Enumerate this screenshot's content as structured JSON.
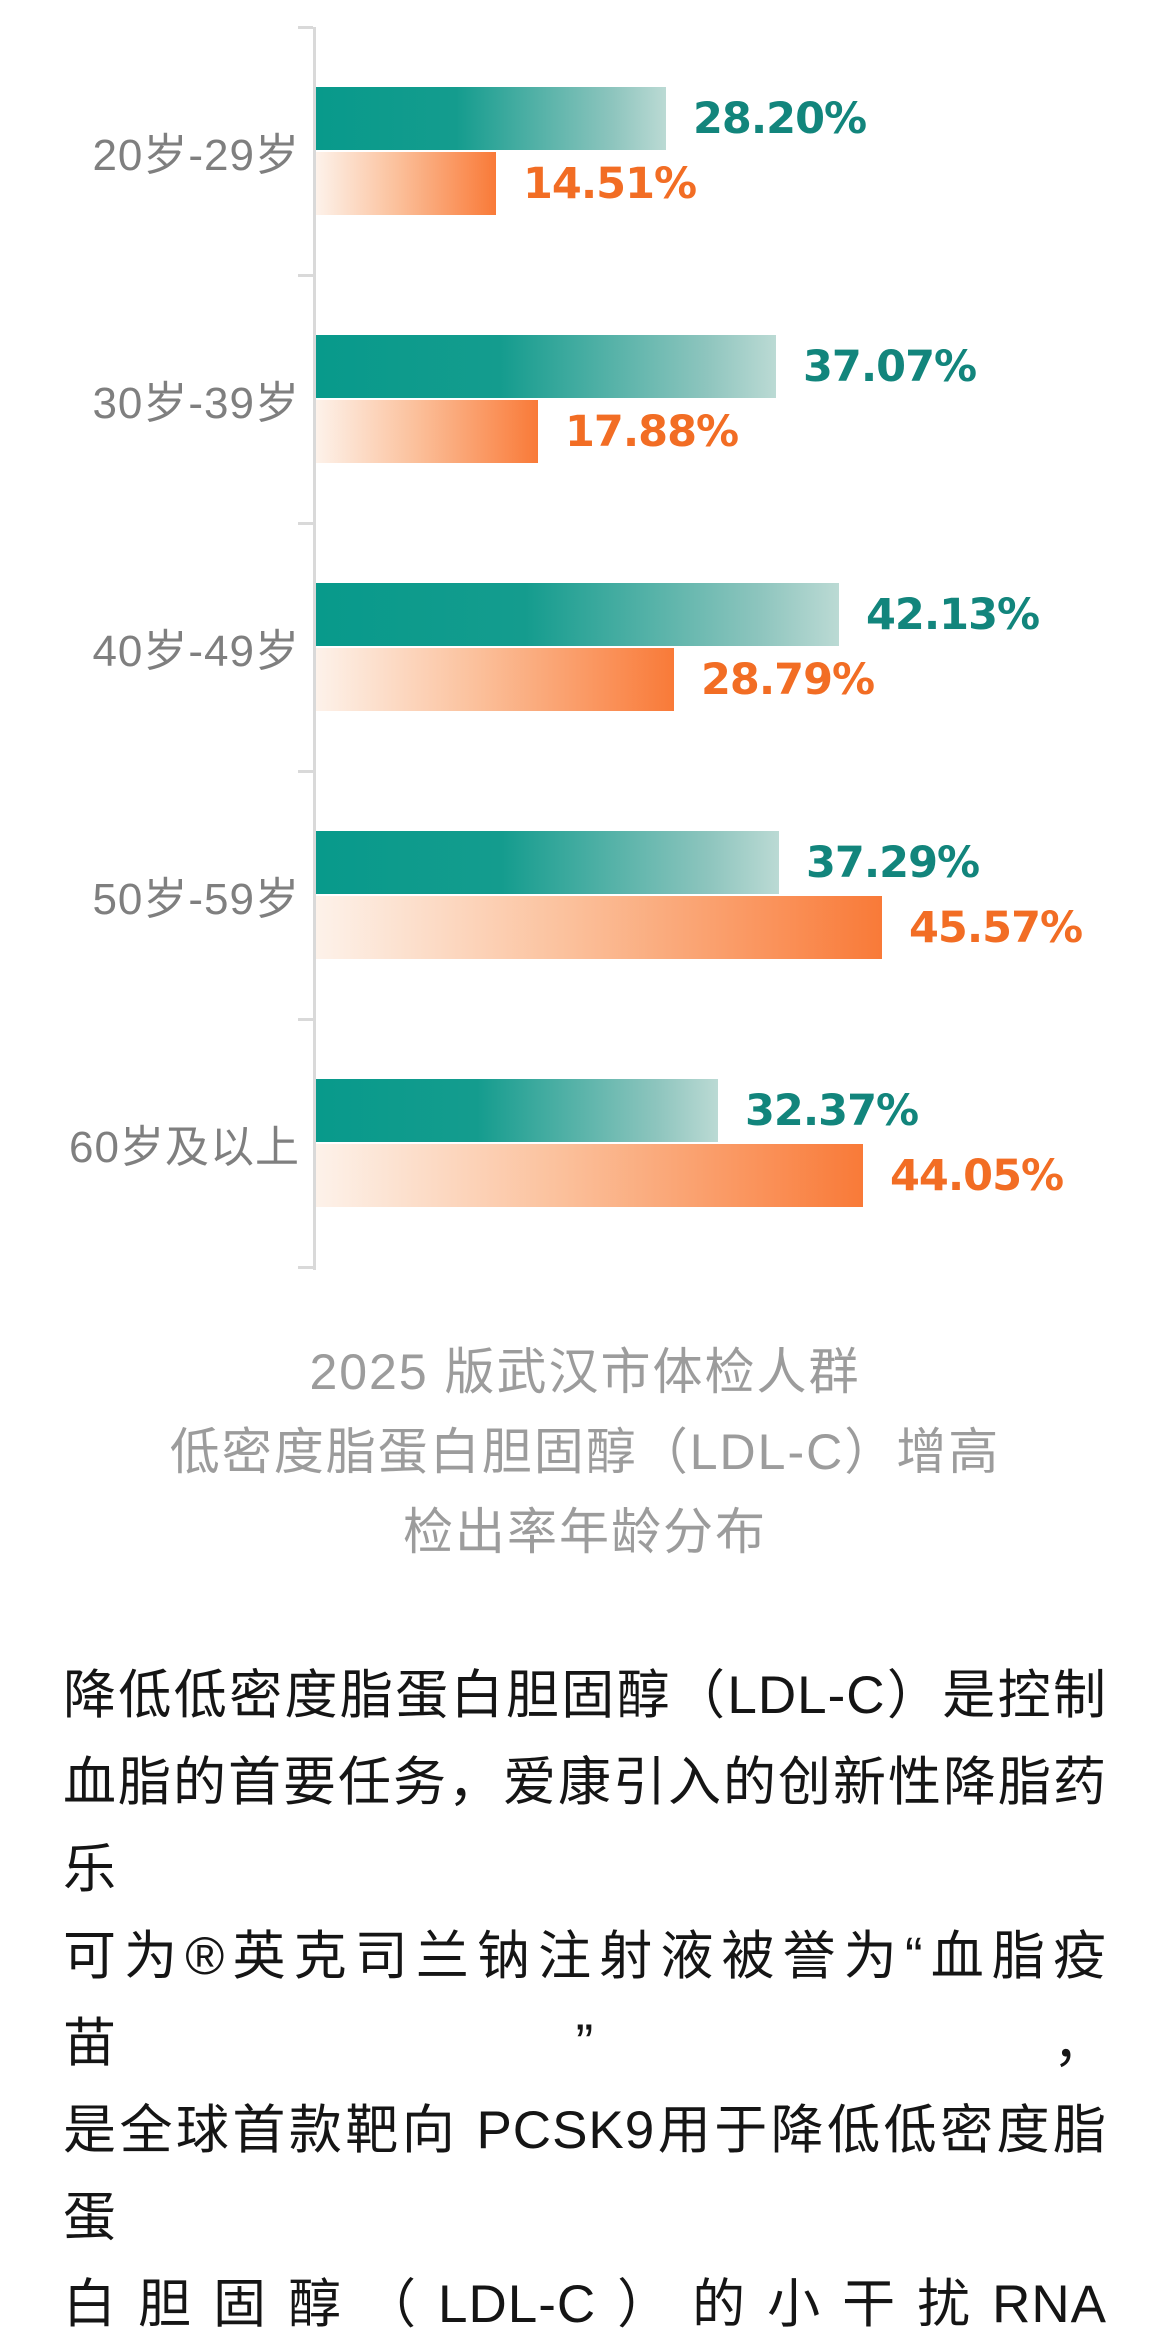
{
  "chart_data": {
    "type": "bar",
    "orientation": "horizontal",
    "title": "2025版武汉市体检人群低密度脂蛋白胆固醇（LDL-C）增高检出率年龄分布",
    "categories": [
      "20岁-29岁",
      "30岁-39岁",
      "40岁-49岁",
      "50岁-59岁",
      "60岁及以上"
    ],
    "series": [
      {
        "name": "series_1_teal",
        "values": [
          28.2,
          37.07,
          42.13,
          37.29,
          32.37
        ]
      },
      {
        "name": "series_2_orange",
        "values": [
          14.51,
          17.88,
          28.79,
          45.57,
          44.05
        ]
      }
    ],
    "value_label_format": "percent_2dp",
    "xlim": [
      0,
      50
    ],
    "grid": false,
    "legend": "none",
    "colors": {
      "teal_bar_start": "#089a8b",
      "teal_bar_end": "#bbdad4",
      "orange_bar_start": "#fdf2ea",
      "orange_bar_end": "#f97a38",
      "teal_label": "#12857c",
      "orange_label": "#f26d24",
      "axis": "#d9d9d9",
      "category_label": "#7f7f7f"
    }
  },
  "caption": {
    "lines": [
      "2025 版武汉市体检人群",
      "低密度脂蛋白胆固醇（LDL-C）增高",
      "检出率年龄分布"
    ]
  },
  "body_text": {
    "lines": [
      "降低低密度脂蛋白胆固醇（LDL-C）是控制",
      "血脂的首要任务，爱康引入的创新性降脂药乐",
      "可为®英克司兰钠注射液被誉为“血脂疫苗”，",
      "是全球首款靶向 PCSK9用于降低低密度脂蛋",
      "白胆固醇（LDL-C）的小干扰RNA"
    ]
  }
}
